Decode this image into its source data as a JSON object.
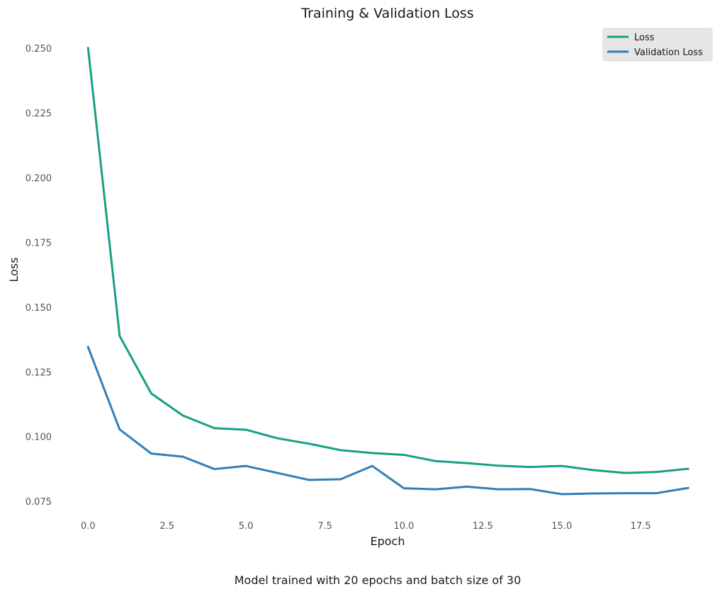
{
  "caption": "Model trained with 20 epochs and batch size of 30",
  "chart_data": {
    "type": "line",
    "title": "Training & Validation Loss",
    "xlabel": "Epoch",
    "ylabel": "Loss",
    "xlim": [
      -0.95,
      19.0
    ],
    "ylim": [
      0.0708,
      0.2562
    ],
    "xticks": [
      0.0,
      2.5,
      5.0,
      7.5,
      10.0,
      12.5,
      15.0,
      17.5
    ],
    "xtick_labels": [
      "0.0",
      "2.5",
      "5.0",
      "7.5",
      "10.0",
      "12.5",
      "15.0",
      "17.5"
    ],
    "yticks": [
      0.075,
      0.1,
      0.125,
      0.15,
      0.175,
      0.2,
      0.225,
      0.25
    ],
    "ytick_labels": [
      "0.075",
      "0.100",
      "0.125",
      "0.150",
      "0.175",
      "0.200",
      "0.225",
      "0.250"
    ],
    "grid": false,
    "legend_position": "top-right",
    "x": [
      0,
      1,
      2,
      3,
      4,
      5,
      6,
      7,
      8,
      9,
      10,
      11,
      12,
      13,
      14,
      15,
      16,
      17,
      18,
      19
    ],
    "series": [
      {
        "name": "Loss",
        "color": "#16a085",
        "values": [
          0.2502,
          0.139,
          0.1168,
          0.1083,
          0.1034,
          0.1028,
          0.0995,
          0.0974,
          0.0949,
          0.0938,
          0.0931,
          0.0907,
          0.0899,
          0.0889,
          0.0884,
          0.0888,
          0.0872,
          0.0861,
          0.0865,
          0.0877
        ]
      },
      {
        "name": "Validation Loss",
        "color": "#2e7fbb",
        "values": [
          0.1347,
          0.1029,
          0.0936,
          0.0924,
          0.0876,
          0.0888,
          0.0861,
          0.0834,
          0.0837,
          0.0888,
          0.0802,
          0.0798,
          0.0808,
          0.0798,
          0.0799,
          0.0779,
          0.0782,
          0.0783,
          0.0783,
          0.0803
        ]
      }
    ]
  }
}
